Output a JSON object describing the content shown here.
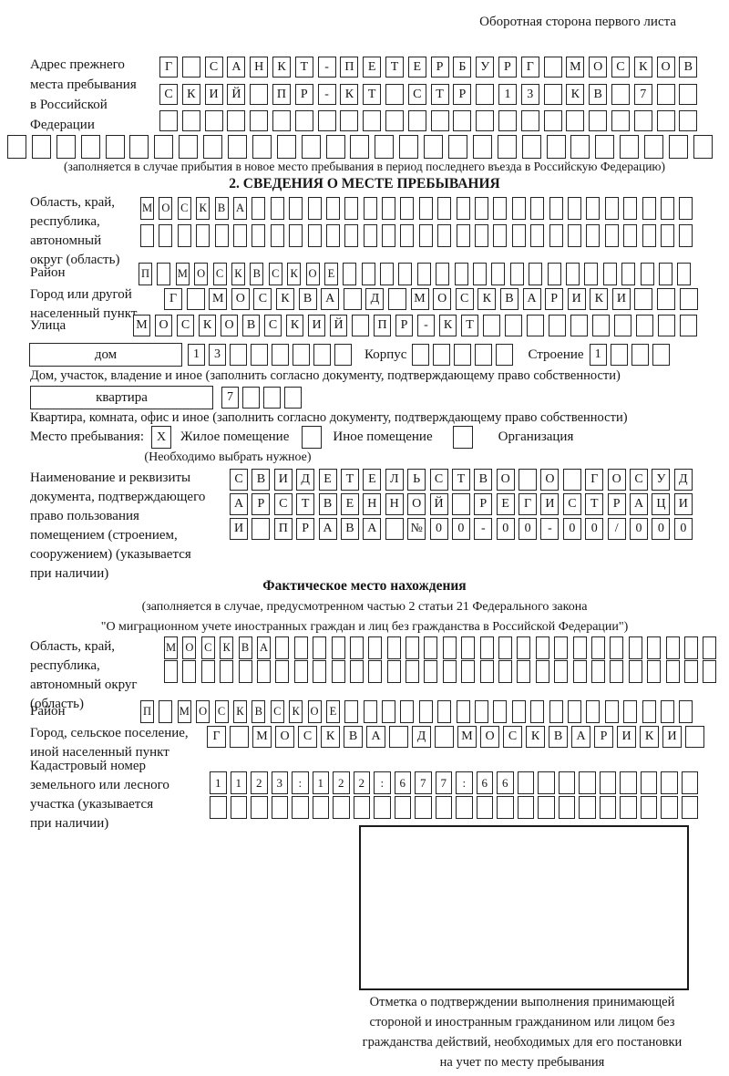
{
  "colors": {
    "ink": "#1b1b1b",
    "paper": "#ffffff"
  },
  "corner_note": "Оборотная сторона первого листа",
  "prev_address": {
    "label_lines": [
      "Адрес прежнего",
      "места пребывания",
      "в Российской",
      "Федерации"
    ],
    "rows": [
      {
        "text": "Г САНКТ-ПЕТЕРБУРГ МОСКОВ",
        "len": 24
      },
      {
        "text": "СКИЙ ПР-КТ СТР 13 КВ 7",
        "len": 24
      },
      {
        "text": "",
        "len": 24
      }
    ],
    "full_row": {
      "text": "",
      "len": 29
    },
    "caption": "(заполняется в случае прибытия в новое место пребывания в период последнего въезда в Российскую Федерацию)"
  },
  "section2": {
    "title": "2. СВЕДЕНИЯ О МЕСТЕ ПРЕБЫВАНИЯ",
    "region": {
      "label_lines": [
        "Область, край,",
        "республика,",
        "автономный",
        "округ (область)"
      ],
      "rows": [
        {
          "text": "МОСКВА",
          "len": 30
        },
        {
          "text": "",
          "len": 30
        }
      ]
    },
    "district": {
      "label": "Район",
      "row": {
        "text": "П МОСКВСКОЕ",
        "len": 30
      }
    },
    "city": {
      "label_lines": [
        "Город или другой",
        "населенный пункт"
      ],
      "row": {
        "text": "Г МОСКВА Д МОСКВАРИКИ",
        "len": 24
      }
    },
    "street": {
      "label": "Улица",
      "row": {
        "text": "МОСКОВСКИЙ ПР-КТ",
        "len": 26
      }
    },
    "house": {
      "wide_label": "дом",
      "cells": {
        "text": "13",
        "len": 8
      },
      "korpus_label": "Корпус",
      "korpus_cells": {
        "text": "",
        "len": 5
      },
      "stroenie_label": "Строение",
      "stroenie_cells": {
        "text": "1",
        "len": 4
      }
    },
    "house_caption": "Дом, участок, владение и иное (заполнить согласно документу, подтверждающему право собственности)",
    "apartment": {
      "wide_label": "квартира",
      "cells": {
        "text": "7",
        "len": 4
      }
    },
    "apartment_caption": "Квартира, комната, офис и иное (заполнить согласно документу, подтверждающему право собственности)",
    "stay": {
      "label": "Место пребывания:",
      "options": [
        {
          "mark": "X",
          "label": "Жилое помещение"
        },
        {
          "mark": "",
          "label": "Иное помещение"
        },
        {
          "mark": "",
          "label": "Организация"
        }
      ],
      "note": "(Необходимо выбрать нужное)"
    },
    "doc": {
      "label_lines": [
        "Наименование и реквизиты",
        "документа, подтверждающего",
        "право пользования",
        "помещением (строением,",
        "сооружением) (указывается",
        "при наличии)"
      ],
      "rows": [
        {
          "text": "СВИДЕТЕЛЬСТВО О ГОСУД",
          "len": 21
        },
        {
          "text": "АРСТВЕННОЙ РЕГИСТРАЦИ",
          "len": 21
        },
        {
          "text": "И ПРАВА №00-00-00/000",
          "len": 21
        }
      ]
    }
  },
  "actual_location": {
    "title": "Фактическое место нахождения",
    "subtitle_lines": [
      "(заполняется в случае, предусмотренном частью 2 статьи 21 Федерального закона",
      "\"О миграционном учете иностранных граждан и лиц без гражданства в Российской Федерации\")"
    ],
    "region": {
      "label_lines": [
        "Область, край,",
        "республика,",
        "автономный округ",
        "(область)"
      ],
      "rows": [
        {
          "text": "МОСКВА",
          "len": 30
        },
        {
          "text": "",
          "len": 30
        }
      ]
    },
    "district": {
      "label": "Район",
      "row": {
        "text": "П МОСКВСКОЕ",
        "len": 30
      }
    },
    "city": {
      "label_lines": [
        "Город, сельское поселение,",
        "иной населенный пункт"
      ],
      "row": {
        "text": "Г МОСКВА Д МОСКВАРИКИ",
        "len": 22
      }
    },
    "cadastral": {
      "label_lines": [
        "Кадастровый номер",
        "земельного или лесного",
        "участка (указывается",
        "при наличии)"
      ],
      "rows": [
        {
          "text": "1123:122:677:66",
          "len": 24
        },
        {
          "text": "",
          "len": 24
        }
      ]
    }
  },
  "stamp": {
    "caption_lines": [
      "Отметка о подтверждении выполнения принимающей",
      "стороной и иностранным гражданином или лицом без",
      "гражданства действий, необходимых для его постановки",
      "на учет по месту пребывания"
    ]
  }
}
